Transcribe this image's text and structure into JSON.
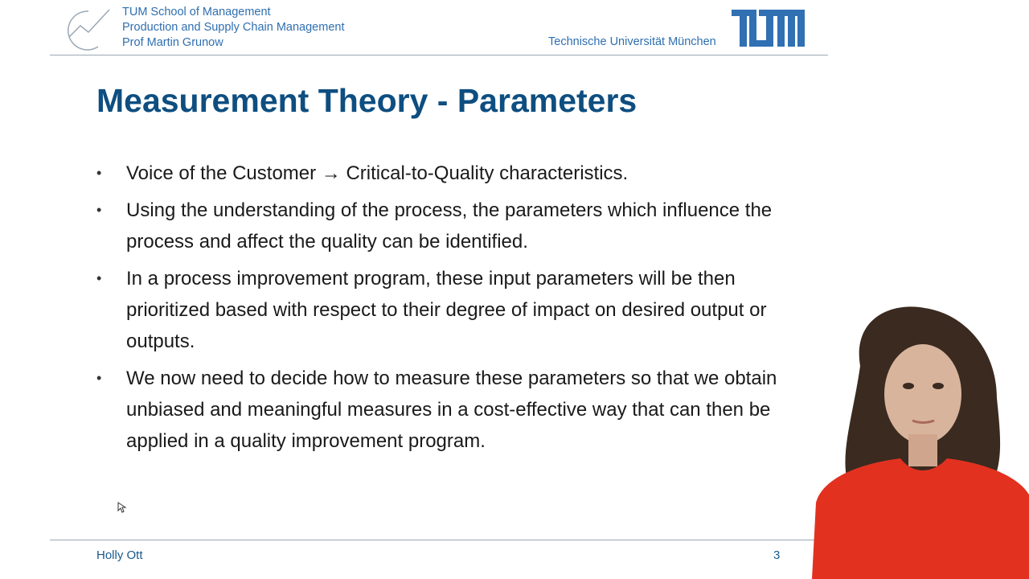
{
  "header": {
    "lines": [
      "TUM School of Management",
      "Production and Supply Chain Management",
      "Prof Martin Grunow"
    ],
    "university": "Technische Universität München"
  },
  "slide": {
    "title": "Measurement Theory - Parameters",
    "bullets": [
      "Voice of the Customer → Critical-to-Quality characteristics.",
      "Using the understanding of the process, the parameters which influence the process and affect the quality can be identified.",
      "In a process improvement program, these input parameters will be then prioritized based with respect to their degree of impact on desired output or outputs.",
      "We now need to decide how to measure these parameters so that we obtain unbiased and meaningful measures in a cost-effective way that can then be applied in a quality improvement program."
    ]
  },
  "footer": {
    "author": "Holly Ott",
    "page": 3
  }
}
